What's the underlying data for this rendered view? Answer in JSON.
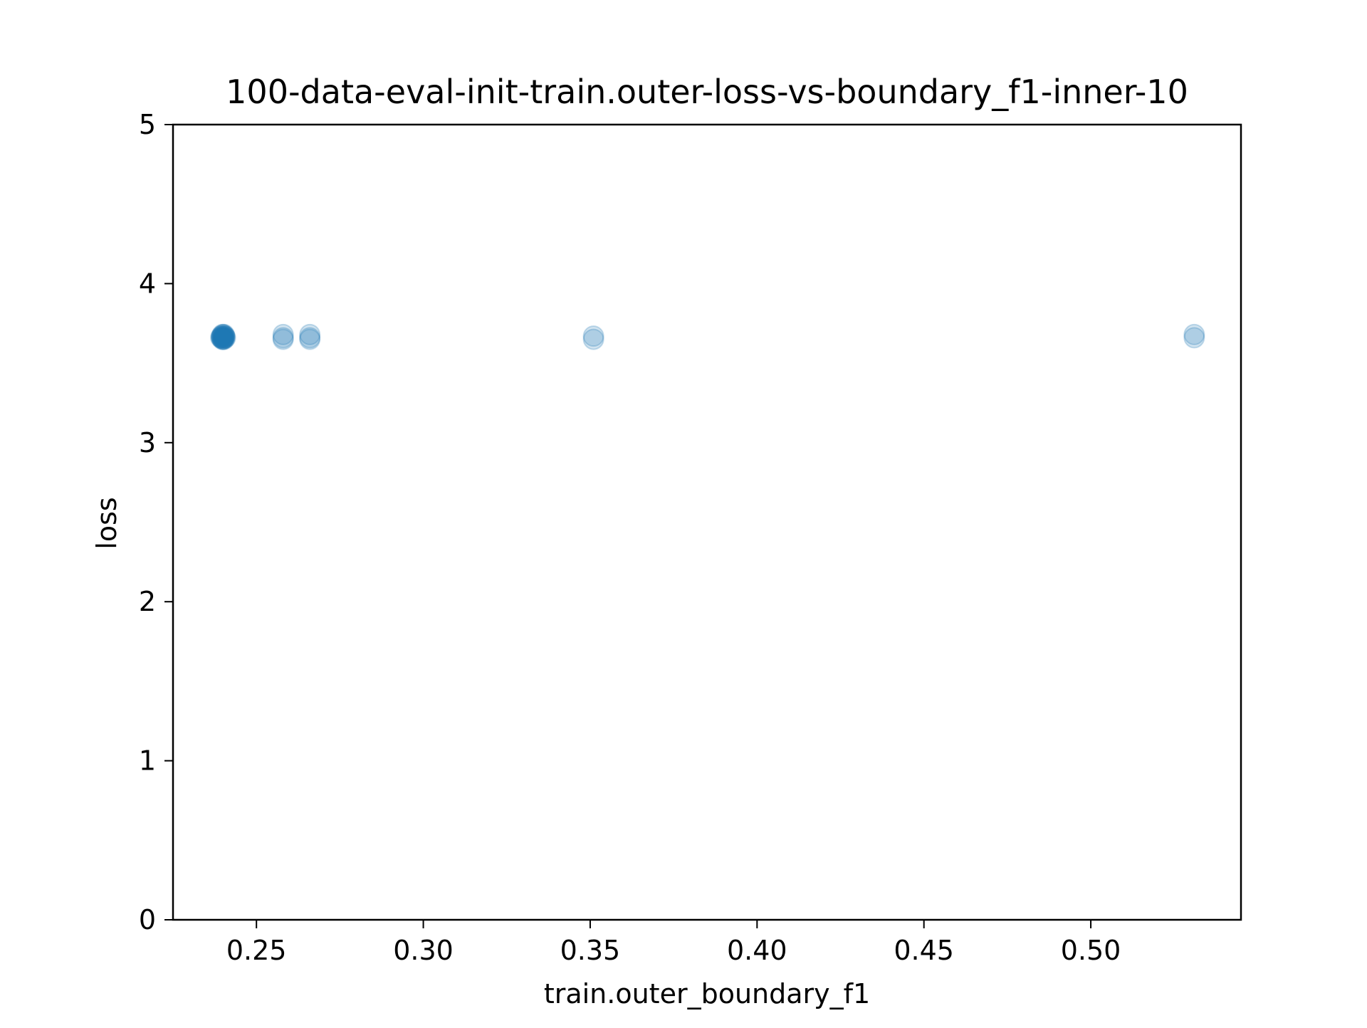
{
  "chart_data": {
    "type": "scatter",
    "title": "100-data-eval-init-train.outer-loss-vs-boundary_f1-inner-10",
    "xlabel": "train.outer_boundary_f1",
    "ylabel": "loss",
    "xlim": [
      0.225,
      0.545
    ],
    "ylim": [
      0,
      5
    ],
    "xticks": [
      0.25,
      0.3,
      0.35,
      0.4,
      0.45,
      0.5
    ],
    "xtick_labels": [
      "0.25",
      "0.30",
      "0.35",
      "0.40",
      "0.45",
      "0.50"
    ],
    "yticks": [
      0,
      1,
      2,
      3,
      4,
      5
    ],
    "ytick_labels": [
      "0",
      "1",
      "2",
      "3",
      "4",
      "5"
    ],
    "grid": false,
    "marker_color": "#1f77b4",
    "marker_alpha": 0.2,
    "series": [
      {
        "name": "runs",
        "points": [
          {
            "x": 0.2395,
            "y": 3.66
          },
          {
            "x": 0.2395,
            "y": 3.67
          },
          {
            "x": 0.2398,
            "y": 3.65
          },
          {
            "x": 0.2398,
            "y": 3.68
          },
          {
            "x": 0.2401,
            "y": 3.66
          },
          {
            "x": 0.2401,
            "y": 3.67
          },
          {
            "x": 0.2403,
            "y": 3.65
          },
          {
            "x": 0.2403,
            "y": 3.68
          },
          {
            "x": 0.2405,
            "y": 3.66
          },
          {
            "x": 0.2405,
            "y": 3.67
          },
          {
            "x": 0.24,
            "y": 3.66
          },
          {
            "x": 0.2397,
            "y": 3.67
          },
          {
            "x": 0.2402,
            "y": 3.66
          },
          {
            "x": 0.2399,
            "y": 3.65
          },
          {
            "x": 0.2404,
            "y": 3.67
          },
          {
            "x": 0.2396,
            "y": 3.66
          },
          {
            "x": 0.24,
            "y": 3.68
          },
          {
            "x": 0.2407,
            "y": 3.66
          },
          {
            "x": 0.2393,
            "y": 3.66
          },
          {
            "x": 0.2401,
            "y": 3.65
          },
          {
            "x": 0.258,
            "y": 3.65
          },
          {
            "x": 0.258,
            "y": 3.66
          },
          {
            "x": 0.258,
            "y": 3.68
          },
          {
            "x": 0.266,
            "y": 3.65
          },
          {
            "x": 0.266,
            "y": 3.66
          },
          {
            "x": 0.266,
            "y": 3.68
          },
          {
            "x": 0.351,
            "y": 3.65
          },
          {
            "x": 0.351,
            "y": 3.67
          },
          {
            "x": 0.531,
            "y": 3.66
          },
          {
            "x": 0.531,
            "y": 3.68
          }
        ]
      }
    ]
  }
}
